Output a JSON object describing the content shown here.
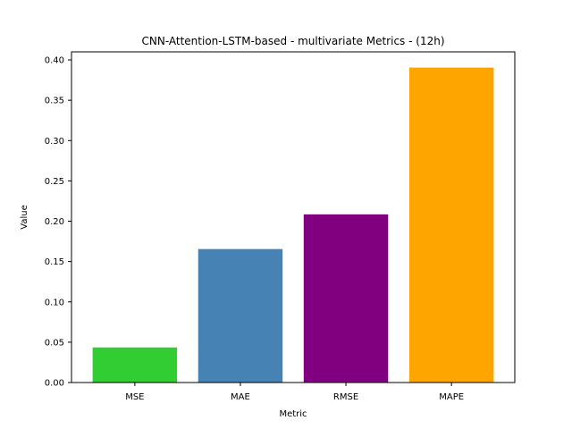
{
  "chart_data": {
    "type": "bar",
    "title": "CNN-Attention-LSTM-based - multivariate Metrics -  (12h)",
    "xlabel": "Metric",
    "ylabel": "Value",
    "categories": [
      "MSE",
      "MAE",
      "RMSE",
      "MAPE"
    ],
    "values": [
      0.0435,
      0.1655,
      0.2085,
      0.3905
    ],
    "colors": [
      "#32cd32",
      "#4682b4",
      "#800080",
      "#ffa500"
    ],
    "ylim": [
      0,
      0.41
    ],
    "yticks": [
      "0.00",
      "0.05",
      "0.10",
      "0.15",
      "0.20",
      "0.25",
      "0.30",
      "0.35",
      "0.40"
    ],
    "grid": false,
    "legend": "none"
  }
}
